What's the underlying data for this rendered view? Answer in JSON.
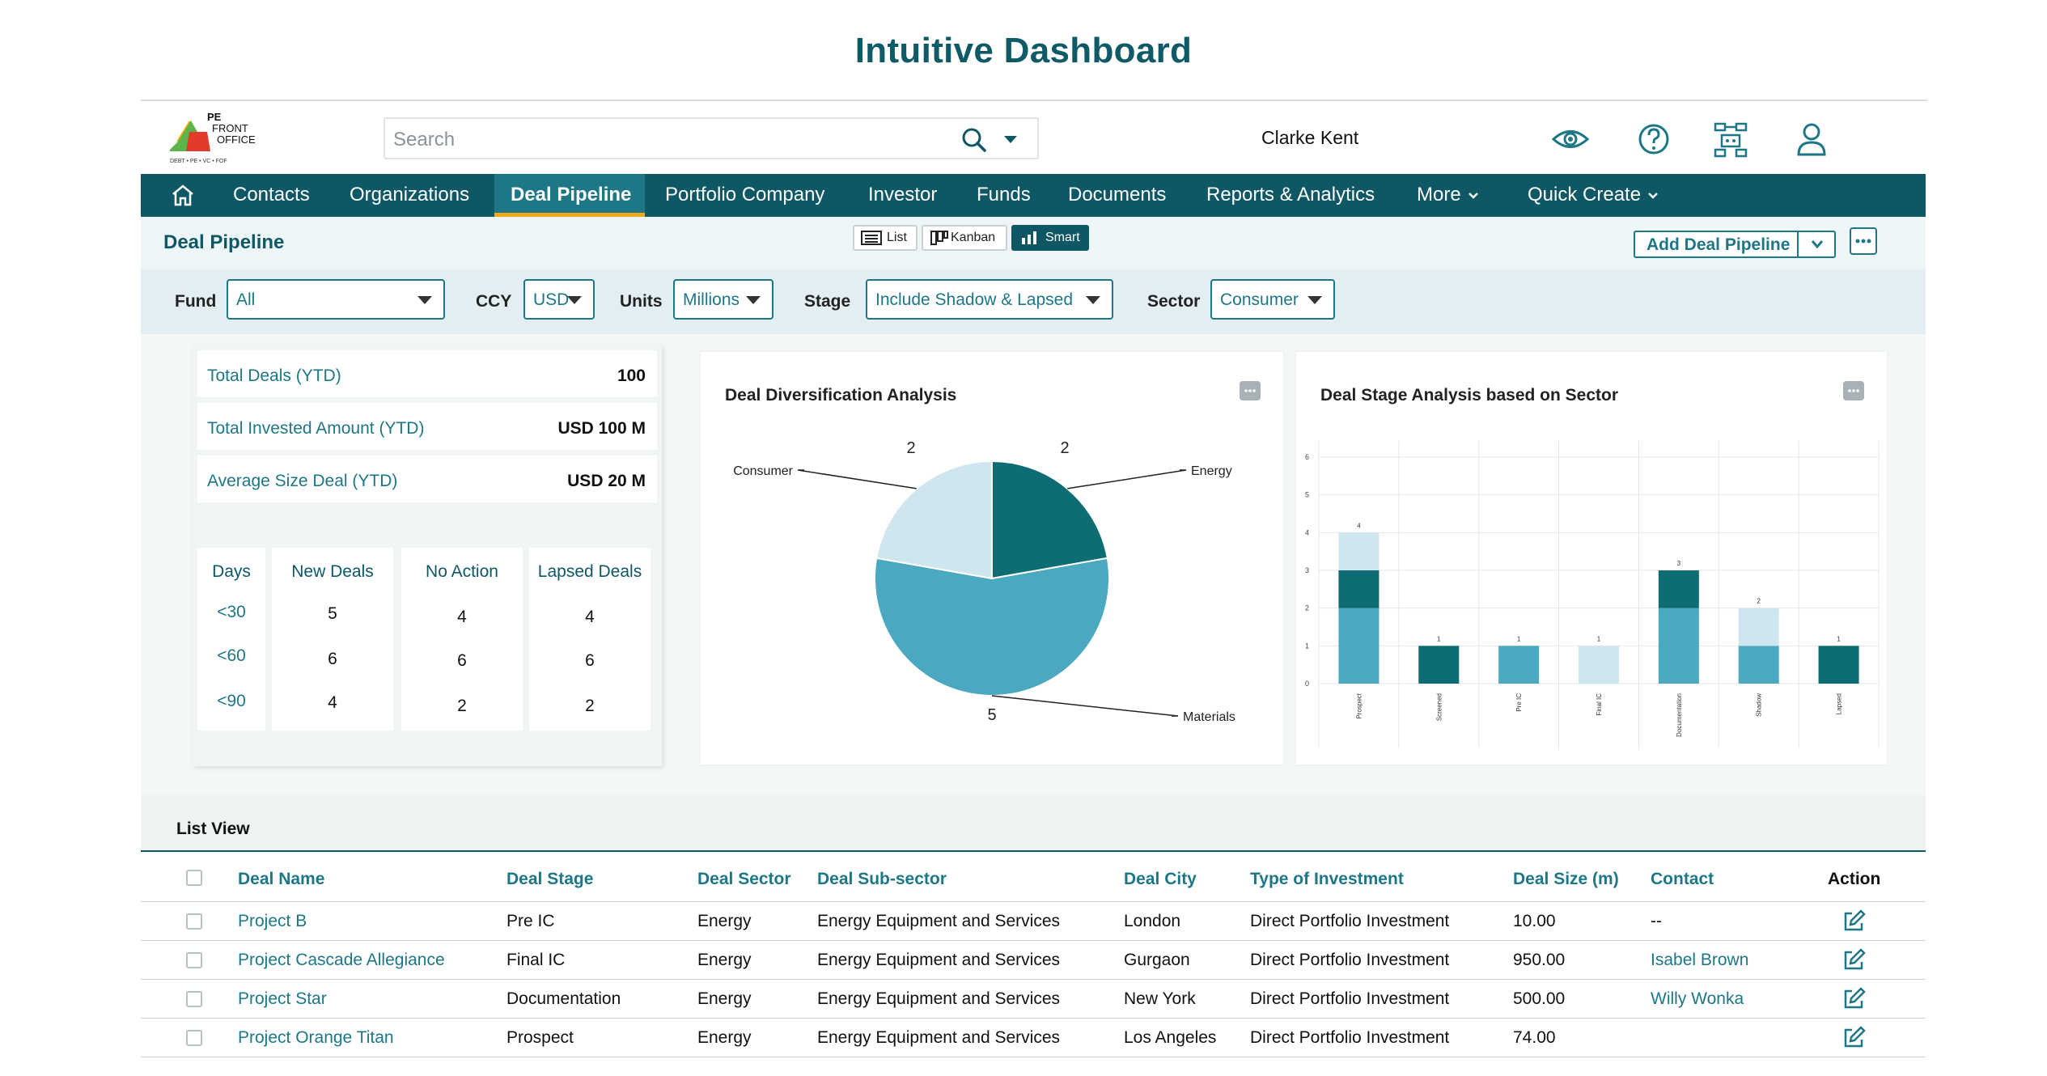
{
  "page_title": "Intuitive Dashboard",
  "logo": {
    "line1": "PE",
    "line2": "FRONT",
    "line3": "OFFICE",
    "tagline": "DEBT • PE • VC • FOF"
  },
  "search": {
    "placeholder": "Search"
  },
  "user": {
    "name": "Clarke Kent"
  },
  "header_icons": [
    "eye-icon",
    "help-icon",
    "org-chart-icon",
    "user-profile-icon"
  ],
  "nav": {
    "items": [
      {
        "label": "Contacts"
      },
      {
        "label": "Organizations"
      },
      {
        "label": "Deal Pipeline",
        "active": true
      },
      {
        "label": "Portfolio Company"
      },
      {
        "label": "Investor"
      },
      {
        "label": "Funds"
      },
      {
        "label": "Documents"
      },
      {
        "label": "Reports & Analytics"
      },
      {
        "label": "More"
      },
      {
        "label": "Quick Create"
      }
    ]
  },
  "pipeline": {
    "title": "Deal Pipeline",
    "views": [
      {
        "label": "List"
      },
      {
        "label": "Kanban"
      },
      {
        "label": "Smart",
        "active": true
      }
    ],
    "add_button": "Add Deal Pipeline"
  },
  "filters": {
    "fund": {
      "label": "Fund",
      "value": "All"
    },
    "ccy": {
      "label": "CCY",
      "value": "USD"
    },
    "units": {
      "label": "Units",
      "value": "Millions"
    },
    "stage": {
      "label": "Stage",
      "value": "Include Shadow & Lapsed"
    },
    "sector": {
      "label": "Sector",
      "value": "Consumer"
    }
  },
  "kpis": [
    {
      "label": "Total Deals (YTD)",
      "value": "100"
    },
    {
      "label": "Total Invested Amount (YTD)",
      "value": "USD 100 M"
    },
    {
      "label": "Average Size Deal (YTD)",
      "value": "USD 20 M"
    }
  ],
  "days_table": {
    "headers": [
      "Days",
      "New Deals",
      "No Action",
      "Lapsed Deals"
    ],
    "rows": [
      [
        "<30",
        "5",
        "4",
        "4"
      ],
      [
        "<60",
        "6",
        "6",
        "6"
      ],
      [
        "<90",
        "4",
        "2",
        "2"
      ]
    ]
  },
  "charts_titles": {
    "pie": "Deal Diversification Analysis",
    "bar": "Deal Stage Analysis based on Sector"
  },
  "chart_data": [
    {
      "type": "pie",
      "title": "Deal Diversification Analysis",
      "slices": [
        {
          "label": "Energy",
          "value": 2,
          "color": "#0e6c75"
        },
        {
          "label": "Materials",
          "value": 5,
          "color": "#4aa9c0"
        },
        {
          "label": "Consumer",
          "value": 2,
          "color": "#cfe6ee"
        }
      ]
    },
    {
      "type": "bar",
      "title": "Deal Stage Analysis based on Sector",
      "categories": [
        "Prospect",
        "Screened",
        "Pre IC",
        "Final IC",
        "Documentation",
        "Shadow",
        "Lapsed"
      ],
      "totals": [
        4,
        1,
        1,
        1,
        3,
        2,
        1
      ],
      "segments": [
        [
          {
            "value": 2,
            "color": "#4aa9c0"
          },
          {
            "value": 1,
            "color": "#0e6c75"
          },
          {
            "value": 1,
            "color": "#cfe6ee"
          }
        ],
        [
          {
            "value": 1,
            "color": "#0e6c75"
          }
        ],
        [
          {
            "value": 1,
            "color": "#4aa9c0"
          }
        ],
        [
          {
            "value": 1,
            "color": "#cfe6ee"
          }
        ],
        [
          {
            "value": 2,
            "color": "#4aa9c0"
          },
          {
            "value": 1,
            "color": "#0e6c75"
          }
        ],
        [
          {
            "value": 1,
            "color": "#4aa9c0"
          },
          {
            "value": 1,
            "color": "#cfe6ee"
          }
        ],
        [
          {
            "value": 1,
            "color": "#0e6c75"
          }
        ]
      ],
      "yticks": [
        "0",
        "1",
        "2",
        "3",
        "4",
        "5",
        "6"
      ],
      "ylim": [
        0,
        6
      ],
      "grid": true
    }
  ],
  "list": {
    "title": "List View",
    "columns": [
      "Deal Name",
      "Deal Stage",
      "Deal Sector",
      "Deal Sub-sector",
      "Deal City",
      "Type of Investment",
      "Deal Size (m)",
      "Contact",
      "Action"
    ],
    "rows": [
      {
        "name": "Project B",
        "stage": "Pre IC",
        "sector": "Energy",
        "subsector": "Energy Equipment and Services",
        "city": "London",
        "type": "Direct Portfolio Investment",
        "size": "10.00",
        "contact": "--"
      },
      {
        "name": "Project Cascade Allegiance",
        "stage": "Final IC",
        "sector": "Energy",
        "subsector": "Energy Equipment and Services",
        "city": "Gurgaon",
        "type": "Direct Portfolio Investment",
        "size": "950.00",
        "contact": "Isabel Brown"
      },
      {
        "name": "Project Star",
        "stage": "Documentation",
        "sector": "Energy",
        "subsector": "Energy Equipment and Services",
        "city": "New York",
        "type": "Direct Portfolio Investment",
        "size": "500.00",
        "contact": "Willy Wonka"
      },
      {
        "name": "Project Orange Titan",
        "stage": "Prospect",
        "sector": "Energy",
        "subsector": "Energy Equipment and Services",
        "city": "Los Angeles",
        "type": "Direct Portfolio Investment",
        "size": "74.00",
        "contact": ""
      }
    ]
  }
}
